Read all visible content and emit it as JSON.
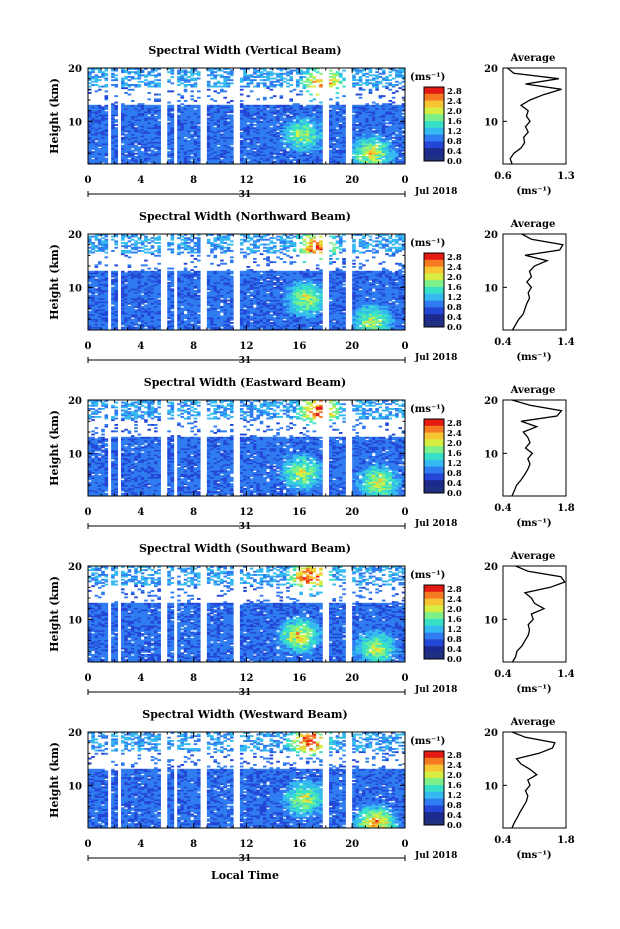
{
  "figure": {
    "xlabel": "Local Time",
    "ylabel": "Height (km)",
    "date_label": "Jul 2018",
    "day_label": "31",
    "xticks": [
      "0",
      "4",
      "8",
      "12",
      "16",
      "20",
      "0"
    ],
    "yticks": [
      "20",
      "10"
    ],
    "colorbar_unit": "(ms⁻¹)",
    "colorbar_ticks": [
      "2.8",
      "2.4",
      "2.0",
      "1.6",
      "1.2",
      "0.8",
      "0.4",
      "0.0"
    ],
    "avg_title": "Average",
    "avg_unit": "(ms⁻¹)",
    "colors": {
      "scale": [
        "#1b2a8c",
        "#2346d6",
        "#2f7cf0",
        "#34b9f0",
        "#39e0c8",
        "#7ef08a",
        "#d6ee42",
        "#f7c534",
        "#f57a22",
        "#e51b13"
      ],
      "bottom": "#203080"
    }
  },
  "chart_data": [
    {
      "type": "heatmap",
      "title": "Spectral Width (Vertical Beam)",
      "x_unit": "hour (local time)",
      "xlim": [
        0,
        24
      ],
      "ylim": [
        2,
        20
      ],
      "clim": [
        0.0,
        3.0
      ],
      "data_gaps_hours": [
        [
          1.6,
          1.8
        ],
        [
          2.3,
          2.6
        ],
        [
          5.6,
          6.1
        ],
        [
          6.5,
          6.8
        ],
        [
          8.6,
          8.9
        ],
        [
          11.1,
          11.4
        ],
        [
          17.7,
          18.2
        ],
        [
          19.6,
          20.0
        ]
      ],
      "peak_regions": [
        {
          "hour": 16.3,
          "height_km": 7.5,
          "level": 1.8
        },
        {
          "hour": 17.8,
          "height_km": 17.0,
          "level": 2.6
        },
        {
          "hour": 21.5,
          "height_km": 4.0,
          "level": 2.2
        }
      ],
      "average_profile": {
        "xlim": [
          0.6,
          1.3
        ],
        "xticks": [
          "0.6",
          "1.3"
        ],
        "height_km": [
          2,
          3,
          4,
          5,
          6,
          7,
          8,
          9,
          10,
          11,
          12,
          13,
          14,
          15,
          16,
          17,
          18,
          19,
          20
        ],
        "values": [
          0.7,
          0.68,
          0.72,
          0.8,
          0.84,
          0.83,
          0.88,
          0.85,
          0.9,
          0.86,
          0.88,
          0.8,
          0.9,
          1.05,
          1.25,
          0.85,
          1.22,
          0.72,
          0.65
        ]
      }
    },
    {
      "type": "heatmap",
      "title": "Spectral Width (Northward Beam)",
      "x_unit": "hour (local time)",
      "xlim": [
        0,
        24
      ],
      "ylim": [
        2,
        20
      ],
      "clim": [
        0.0,
        3.0
      ],
      "data_gaps_hours": [
        [
          1.6,
          1.8
        ],
        [
          2.3,
          2.6
        ],
        [
          5.6,
          6.1
        ],
        [
          6.5,
          6.8
        ],
        [
          8.6,
          8.9
        ],
        [
          11.1,
          11.4
        ],
        [
          17.7,
          18.2
        ],
        [
          19.6,
          20.0
        ]
      ],
      "peak_regions": [
        {
          "hour": 16.5,
          "height_km": 8.0,
          "level": 2.0
        },
        {
          "hour": 17.3,
          "height_km": 17.5,
          "level": 2.7
        },
        {
          "hour": 21.5,
          "height_km": 3.5,
          "level": 2.0
        }
      ],
      "average_profile": {
        "xlim": [
          0.4,
          1.4
        ],
        "xticks": [
          "0.4",
          "1.4"
        ],
        "height_km": [
          2,
          3,
          4,
          5,
          6,
          7,
          8,
          9,
          10,
          11,
          12,
          13,
          14,
          15,
          16,
          17,
          18,
          19,
          20
        ],
        "values": [
          0.55,
          0.6,
          0.65,
          0.72,
          0.75,
          0.78,
          0.82,
          0.8,
          0.85,
          0.78,
          0.85,
          0.82,
          0.9,
          1.1,
          0.75,
          1.3,
          1.35,
          0.85,
          0.7
        ]
      }
    },
    {
      "type": "heatmap",
      "title": "Spectral Width (Eastward Beam)",
      "x_unit": "hour (local time)",
      "xlim": [
        0,
        24
      ],
      "ylim": [
        2,
        20
      ],
      "clim": [
        0.0,
        3.0
      ],
      "data_gaps_hours": [
        [
          1.6,
          1.8
        ],
        [
          2.3,
          2.6
        ],
        [
          5.6,
          6.1
        ],
        [
          6.5,
          6.8
        ],
        [
          8.6,
          8.9
        ],
        [
          11.1,
          11.4
        ],
        [
          17.7,
          18.2
        ],
        [
          19.6,
          20.0
        ]
      ],
      "peak_regions": [
        {
          "hour": 16.2,
          "height_km": 6.5,
          "level": 2.0
        },
        {
          "hour": 17.5,
          "height_km": 18.0,
          "level": 2.8
        },
        {
          "hour": 22.0,
          "height_km": 4.5,
          "level": 2.1
        }
      ],
      "average_profile": {
        "xlim": [
          0.4,
          1.8
        ],
        "xticks": [
          "0.4",
          "1.8"
        ],
        "height_km": [
          2,
          3,
          4,
          5,
          6,
          7,
          8,
          9,
          10,
          11,
          12,
          13,
          14,
          15,
          16,
          17,
          18,
          19,
          20
        ],
        "values": [
          0.6,
          0.65,
          0.7,
          0.8,
          0.88,
          0.95,
          1.0,
          0.95,
          1.05,
          0.9,
          1.0,
          0.95,
          0.85,
          1.15,
          0.8,
          1.6,
          1.7,
          1.0,
          0.6
        ]
      }
    },
    {
      "type": "heatmap",
      "title": "Spectral Width (Southward Beam)",
      "x_unit": "hour (local time)",
      "xlim": [
        0,
        24
      ],
      "ylim": [
        2,
        20
      ],
      "clim": [
        0.0,
        3.0
      ],
      "data_gaps_hours": [
        [
          1.6,
          1.8
        ],
        [
          2.3,
          2.6
        ],
        [
          5.6,
          6.1
        ],
        [
          6.5,
          6.8
        ],
        [
          8.6,
          8.9
        ],
        [
          11.1,
          11.4
        ],
        [
          17.7,
          18.2
        ],
        [
          19.6,
          20.0
        ]
      ],
      "peak_regions": [
        {
          "hour": 16.0,
          "height_km": 7.0,
          "level": 2.3
        },
        {
          "hour": 16.8,
          "height_km": 18.0,
          "level": 2.8
        },
        {
          "hour": 21.8,
          "height_km": 4.5,
          "level": 2.0
        }
      ],
      "average_profile": {
        "xlim": [
          0.4,
          1.4
        ],
        "xticks": [
          "0.4",
          "1.4"
        ],
        "height_km": [
          2,
          3,
          4,
          5,
          6,
          7,
          8,
          9,
          10,
          11,
          12,
          13,
          14,
          15,
          16,
          17,
          18,
          19,
          20
        ],
        "values": [
          0.55,
          0.6,
          0.62,
          0.7,
          0.75,
          0.8,
          0.82,
          0.8,
          0.88,
          0.85,
          1.05,
          0.9,
          0.85,
          0.75,
          1.15,
          1.38,
          1.32,
          0.8,
          0.6
        ]
      }
    },
    {
      "type": "heatmap",
      "title": "Spectral Width (Westward Beam)",
      "x_unit": "hour (local time)",
      "xlim": [
        0,
        24
      ],
      "ylim": [
        2,
        20
      ],
      "clim": [
        0.0,
        3.0
      ],
      "data_gaps_hours": [
        [
          1.6,
          1.8
        ],
        [
          2.3,
          2.6
        ],
        [
          5.6,
          6.1
        ],
        [
          6.5,
          6.8
        ],
        [
          8.6,
          8.9
        ],
        [
          11.1,
          11.4
        ],
        [
          17.7,
          18.2
        ],
        [
          19.6,
          20.0
        ]
      ],
      "peak_regions": [
        {
          "hour": 16.4,
          "height_km": 7.5,
          "level": 2.0
        },
        {
          "hour": 16.8,
          "height_km": 18.5,
          "level": 2.8
        },
        {
          "hour": 21.8,
          "height_km": 3.0,
          "level": 2.5
        }
      ],
      "average_profile": {
        "xlim": [
          0.4,
          1.8
        ],
        "xticks": [
          "0.4",
          "1.8"
        ],
        "height_km": [
          2,
          3,
          4,
          5,
          6,
          7,
          8,
          9,
          10,
          11,
          12,
          13,
          14,
          15,
          16,
          17,
          18,
          19,
          20
        ],
        "values": [
          0.6,
          0.65,
          0.72,
          0.78,
          0.85,
          0.92,
          0.95,
          0.9,
          1.0,
          0.95,
          1.15,
          1.0,
          0.8,
          0.7,
          1.2,
          1.5,
          1.55,
          0.9,
          0.6
        ]
      }
    }
  ]
}
